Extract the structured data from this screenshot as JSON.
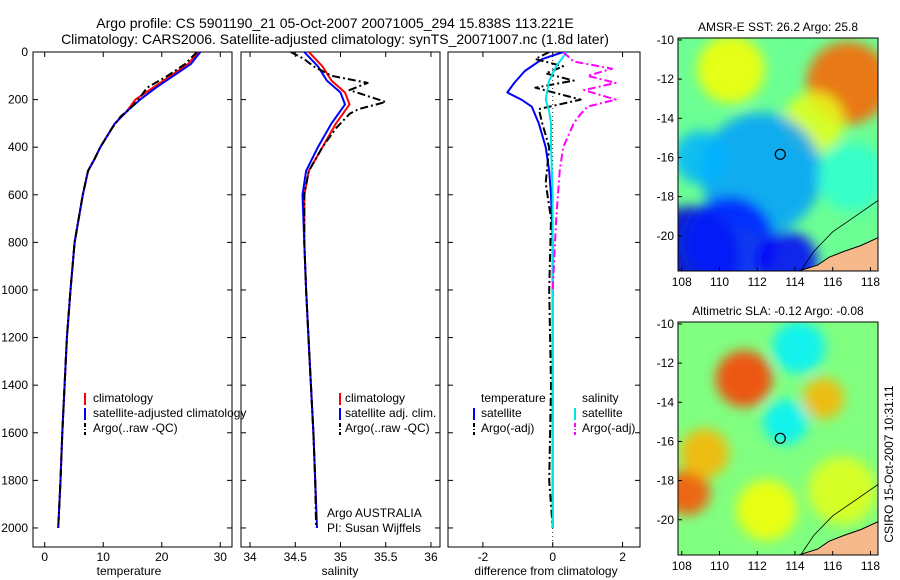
{
  "header": {
    "line1": "Argo profile: CS 5901190_21 05-Oct-2007 20071005_294 15.838S 113.221E",
    "line2": "Climatology: CARS2006. Satellite-adjusted climatology: synTS_20071007.nc (1.8d later)"
  },
  "colors": {
    "climatology": "#ff0000",
    "satellite": "#0000ff",
    "argo": "#000000",
    "salinity_satellite": "#00e5e5",
    "salinity_argo": "#ff00ff",
    "land": "#f5b98c"
  },
  "chart_data": [
    {
      "type": "line",
      "xlabel": "temperature",
      "ylabel": "",
      "xlim": [
        -2,
        32
      ],
      "ylim": [
        2080,
        0
      ],
      "y_reversed": true,
      "xticks": [
        0,
        10,
        20,
        30
      ],
      "yticks": [
        0,
        200,
        400,
        600,
        800,
        1000,
        1200,
        1400,
        1600,
        1800,
        2000
      ],
      "legend": [
        "climatology",
        "satellite-adjusted climatology",
        "Argo(..raw -QC)"
      ],
      "legend_position": "lower-right",
      "series": [
        {
          "name": "climatology",
          "color": "red",
          "style": "solid",
          "x": [
            26.3,
            24.5,
            21.5,
            18.5,
            15.5,
            14.0,
            12.0,
            9.5,
            8.5,
            7.4,
            6.5,
            5.8,
            5.1,
            4.4,
            3.8,
            3.4,
            3.0,
            2.7,
            2.4,
            2.3
          ],
          "y": [
            0,
            50,
            100,
            150,
            200,
            250,
            300,
            400,
            450,
            500,
            600,
            700,
            800,
            1000,
            1200,
            1400,
            1600,
            1800,
            1950,
            2000
          ]
        },
        {
          "name": "satellite-adjusted climatology",
          "color": "blue",
          "style": "solid",
          "x": [
            26.6,
            25.0,
            22.0,
            19.0,
            16.3,
            14.0,
            12.0,
            9.5,
            8.5,
            7.4,
            6.5,
            5.8,
            5.1,
            4.4,
            3.8,
            3.4,
            3.0,
            2.7,
            2.4,
            2.3
          ],
          "y": [
            0,
            50,
            100,
            150,
            200,
            250,
            300,
            400,
            450,
            500,
            600,
            700,
            800,
            1000,
            1200,
            1400,
            1600,
            1800,
            1950,
            2000
          ]
        },
        {
          "name": "Argo(..raw -QC)",
          "color": "black",
          "style": "dashdot",
          "x": [
            26.0,
            24.0,
            21.0,
            17.5,
            16.0,
            14.5,
            13.0,
            11.5,
            9.5,
            8.5,
            7.4,
            6.5,
            5.8,
            5.1,
            4.4,
            3.8,
            3.4,
            3.0,
            2.7,
            2.4,
            2.3
          ],
          "y": [
            0,
            50,
            100,
            150,
            200,
            240,
            270,
            320,
            400,
            450,
            500,
            600,
            700,
            800,
            1000,
            1200,
            1400,
            1600,
            1800,
            1950,
            2000
          ]
        }
      ]
    },
    {
      "type": "line",
      "xlabel": "salinity",
      "ylabel": "",
      "xlim": [
        33.9,
        36.1
      ],
      "ylim": [
        2080,
        0
      ],
      "y_reversed": true,
      "xticks": [
        34,
        34.5,
        35,
        35.5,
        36
      ],
      "legend": [
        "climatology",
        "satellite adj. clim.",
        "Argo(..raw -QC)"
      ],
      "legend_position": "lower-right",
      "annotation": [
        "Argo AUSTRALIA",
        "PI: Susan Wijffels"
      ],
      "series": [
        {
          "name": "climatology",
          "color": "red",
          "style": "solid",
          "x": [
            34.65,
            34.7,
            34.8,
            34.9,
            35.05,
            35.1,
            34.95,
            34.8,
            34.65,
            34.6,
            34.6,
            34.62,
            34.66,
            34.7,
            34.72,
            34.73
          ],
          "y": [
            0,
            20,
            60,
            120,
            170,
            220,
            300,
            400,
            500,
            600,
            800,
            1000,
            1300,
            1600,
            1800,
            1900
          ]
        },
        {
          "name": "satellite adj. clim.",
          "color": "blue",
          "style": "solid",
          "x": [
            34.6,
            34.65,
            34.75,
            34.85,
            35.0,
            35.05,
            34.9,
            34.75,
            34.62,
            34.58,
            34.6,
            34.62,
            34.66,
            34.7,
            34.72,
            34.74
          ],
          "y": [
            0,
            20,
            60,
            120,
            170,
            220,
            300,
            400,
            500,
            600,
            800,
            1000,
            1300,
            1600,
            1800,
            2000
          ]
        },
        {
          "name": "Argo(..raw -QC)",
          "color": "black",
          "style": "dashdot",
          "x": [
            34.45,
            34.6,
            34.7,
            34.9,
            35.3,
            35.1,
            35.5,
            35.2,
            35.1,
            34.95,
            34.8,
            34.65,
            34.6,
            34.6,
            34.62,
            34.66,
            34.7,
            34.72,
            34.73
          ],
          "y": [
            0,
            30,
            60,
            100,
            130,
            160,
            210,
            240,
            260,
            320,
            400,
            500,
            600,
            800,
            1000,
            1300,
            1600,
            1800,
            2000
          ]
        }
      ]
    },
    {
      "type": "line",
      "xlabel": "difference from climatology",
      "ylabel": "",
      "xlim": [
        -3,
        2.5
      ],
      "ylim": [
        2080,
        0
      ],
      "y_reversed": true,
      "xticks": [
        -2,
        0,
        2
      ],
      "legend_groups": [
        {
          "title": "temperature",
          "entries": [
            "satellite",
            "Argo(-adj)"
          ]
        },
        {
          "title": "salinity",
          "entries": [
            "satellite",
            "Argo(-adj)"
          ]
        }
      ],
      "legend_position": "lower-center",
      "series": [
        {
          "name": "temperature satellite",
          "color": "blue",
          "style": "solid",
          "x": [
            0.3,
            -0.3,
            -0.8,
            -1.1,
            -1.3,
            -0.9,
            -0.6,
            -0.4,
            -0.2,
            -0.1,
            -0.05,
            0.0,
            0.0,
            0.0,
            0.0
          ],
          "y": [
            0,
            30,
            80,
            130,
            170,
            200,
            230,
            300,
            400,
            500,
            600,
            800,
            1000,
            1500,
            2000
          ]
        },
        {
          "name": "temperature Argo(-adj)",
          "color": "black",
          "style": "dashdot",
          "x": [
            -0.1,
            -0.5,
            0.3,
            -0.2,
            0.6,
            -0.5,
            0.8,
            -0.4,
            -0.3,
            -0.1,
            -0.2,
            -0.05,
            -0.1,
            -0.05,
            -0.1,
            0.0
          ],
          "y": [
            0,
            30,
            60,
            90,
            120,
            150,
            200,
            240,
            300,
            400,
            550,
            700,
            1000,
            1400,
            1800,
            2000
          ]
        },
        {
          "name": "salinity satellite",
          "color": "cyan",
          "style": "solid",
          "x": [
            0.4,
            0.1,
            -0.1,
            -0.2,
            -0.1,
            -0.05,
            -0.05,
            0.0,
            0.0,
            0.0,
            0.0
          ],
          "y": [
            0,
            60,
            120,
            200,
            250,
            300,
            400,
            600,
            1000,
            1500,
            2000
          ]
        },
        {
          "name": "salinity Argo(-adj)",
          "color": "magenta",
          "style": "dashdot",
          "x": [
            0.3,
            0.6,
            1.7,
            1.0,
            1.8,
            0.9,
            1.8,
            1.0,
            0.8,
            0.6,
            0.3,
            0.2,
            0.1,
            0.0
          ],
          "y": [
            0,
            40,
            70,
            100,
            130,
            160,
            200,
            230,
            260,
            300,
            400,
            500,
            700,
            1000
          ]
        }
      ]
    },
    {
      "type": "heatmap",
      "title": "AMSR-E SST: 26.2 Argo: 25.8",
      "xlim": [
        107.8,
        118.4
      ],
      "ylim": [
        -21.8,
        -9.9
      ],
      "xticks": [
        108,
        110,
        112,
        114,
        116,
        118
      ],
      "yticks": [
        -10,
        -12,
        -14,
        -16,
        -18,
        -20
      ],
      "marker": {
        "x": 113.22,
        "y": -15.84
      },
      "blobs": [
        {
          "x": 116.8,
          "y": -12.2,
          "r": 2.2,
          "v": 0.78
        },
        {
          "x": 110.6,
          "y": -11.5,
          "r": 1.8,
          "v": 0.62
        },
        {
          "x": 115.0,
          "y": -14.2,
          "r": 1.6,
          "v": 0.6
        },
        {
          "x": 112.2,
          "y": -16.8,
          "r": 3.2,
          "v": 0.28
        },
        {
          "x": 108.4,
          "y": -21.0,
          "r": 2.6,
          "v": 0.08
        },
        {
          "x": 110.5,
          "y": -20.3,
          "r": 2.4,
          "v": 0.15
        },
        {
          "x": 113.6,
          "y": -21.3,
          "r": 1.6,
          "v": 0.12
        },
        {
          "x": 109.0,
          "y": -16.0,
          "r": 1.4,
          "v": 0.3
        },
        {
          "x": 117.0,
          "y": -17.0,
          "r": 1.8,
          "v": 0.42
        }
      ],
      "base": 0.48
    },
    {
      "type": "heatmap",
      "title": "Altimetric SLA: -0.12 Argo: -0.08",
      "xlim": [
        107.8,
        118.4
      ],
      "ylim": [
        -21.8,
        -9.9
      ],
      "xticks": [
        108,
        110,
        112,
        114,
        116,
        118
      ],
      "yticks": [
        -10,
        -12,
        -14,
        -16,
        -18,
        -20
      ],
      "marker": {
        "x": 113.22,
        "y": -15.84
      },
      "blobs": [
        {
          "x": 111.3,
          "y": -12.8,
          "r": 1.5,
          "v": 0.82
        },
        {
          "x": 108.3,
          "y": -18.6,
          "r": 1.2,
          "v": 0.8
        },
        {
          "x": 109.2,
          "y": -16.6,
          "r": 1.3,
          "v": 0.7
        },
        {
          "x": 115.5,
          "y": -13.8,
          "r": 1.1,
          "v": 0.7
        },
        {
          "x": 114.2,
          "y": -11.2,
          "r": 1.4,
          "v": 0.36
        },
        {
          "x": 113.5,
          "y": -15.0,
          "r": 1.2,
          "v": 0.36
        },
        {
          "x": 116.5,
          "y": -18.5,
          "r": 1.8,
          "v": 0.6
        },
        {
          "x": 112.5,
          "y": -19.5,
          "r": 1.6,
          "v": 0.62
        }
      ],
      "base": 0.5
    }
  ],
  "stamp": "CSIRO 15-Oct-2007 10:31:11"
}
